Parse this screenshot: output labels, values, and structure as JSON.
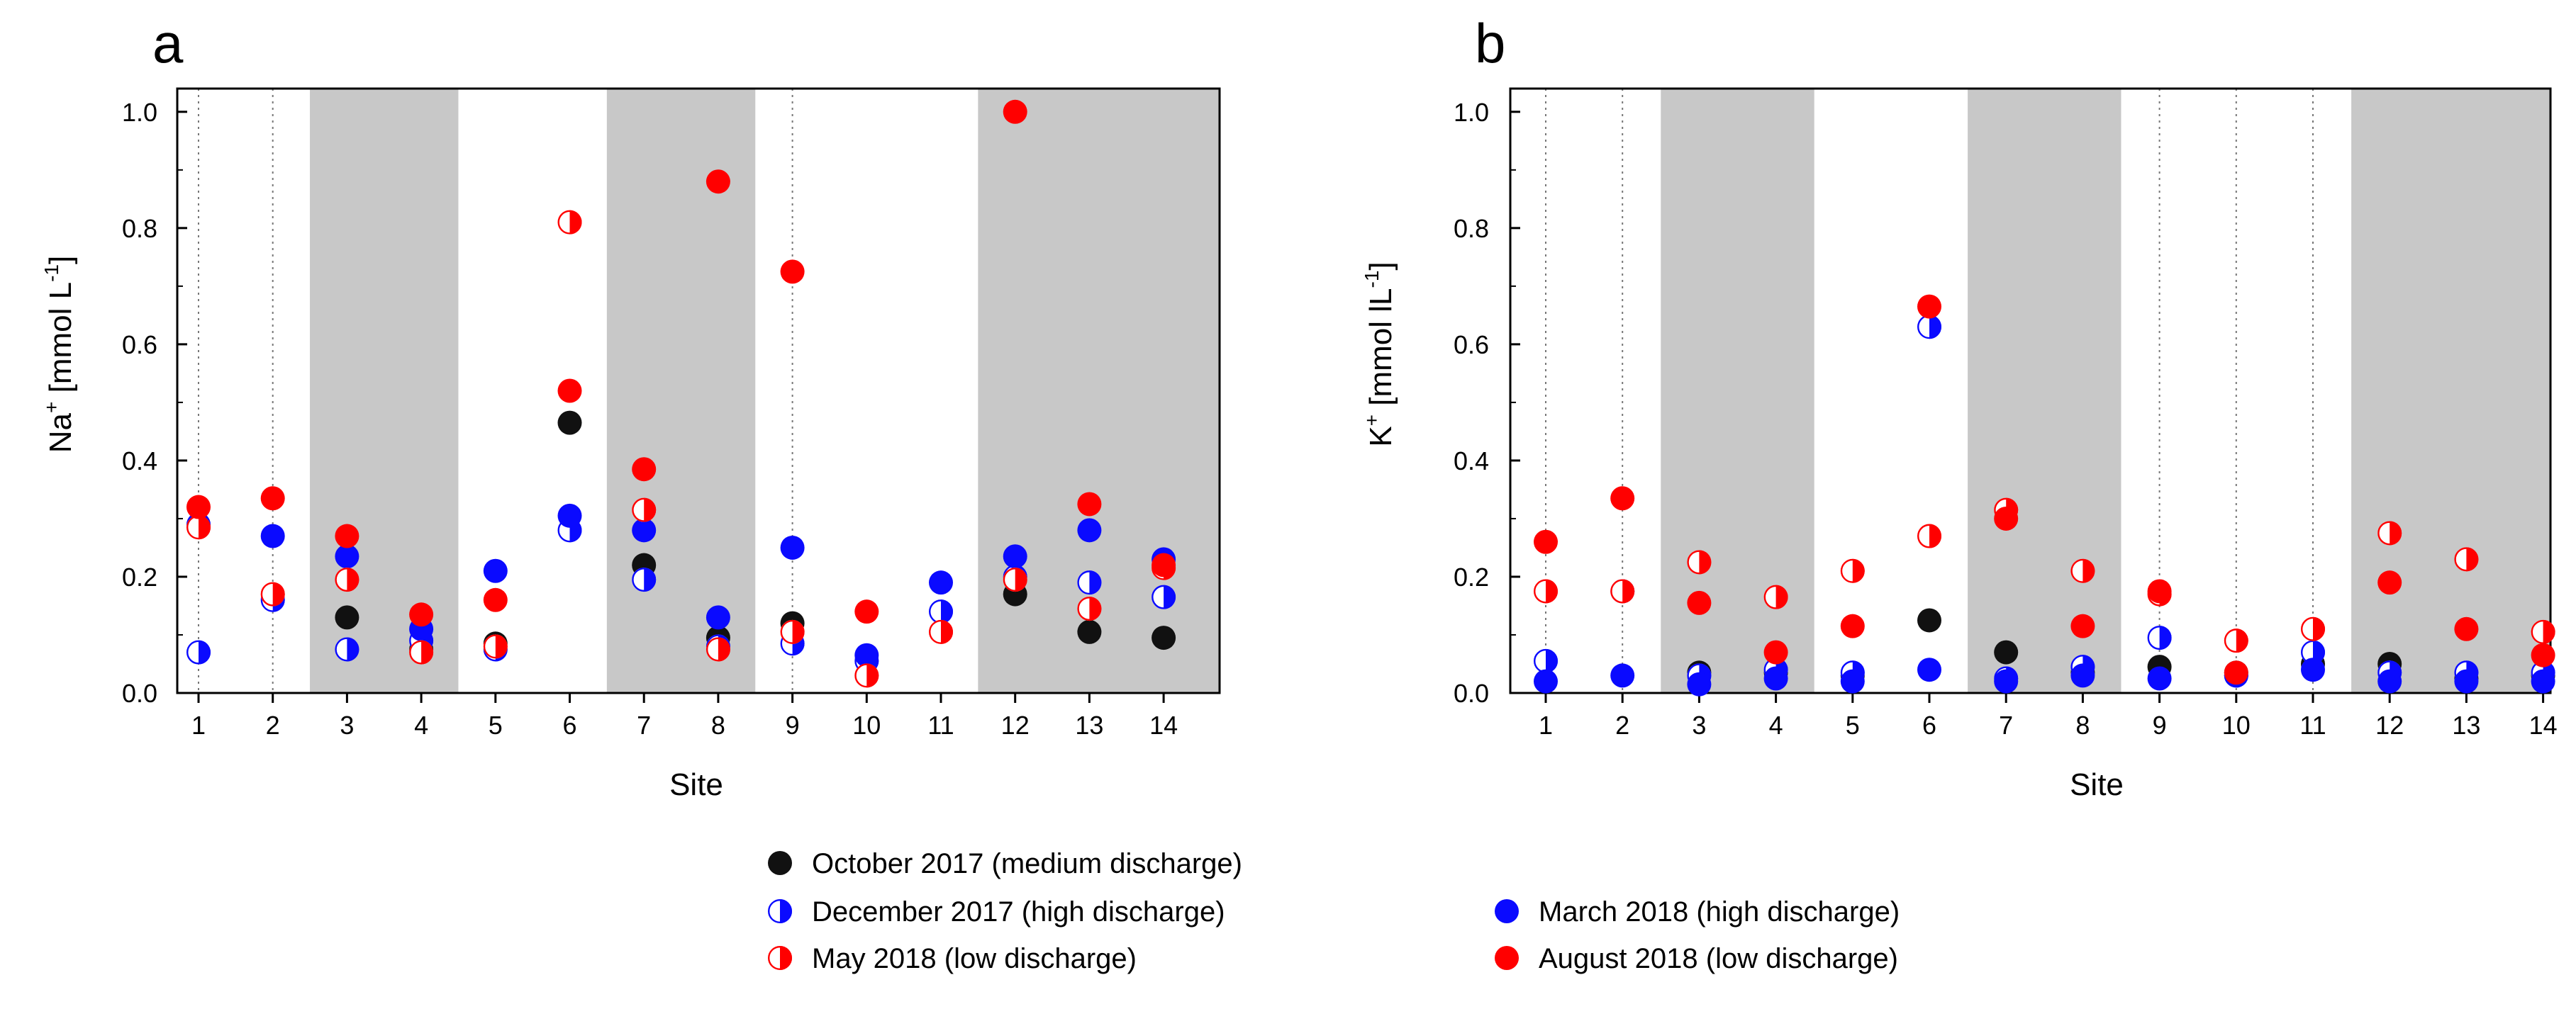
{
  "chart_data": [
    {
      "type": "scatter",
      "panel_label": "a",
      "ylabel_main": "Na",
      "ylabel_sup": "+",
      "ylabel_unit": " [mmol L",
      "ylabel_unit_sup": "-1",
      "ylabel_close": "]",
      "xlabel": "Site",
      "categories": [
        "1",
        "2",
        "3",
        "4",
        "5",
        "6",
        "7",
        "8",
        "9",
        "10",
        "11",
        "12",
        "13",
        "14"
      ],
      "ylim": [
        0,
        1.04
      ],
      "yticks": [
        "0.0",
        "0.2",
        "0.4",
        "0.6",
        "0.8",
        "1.0"
      ],
      "shaded_sites": [
        3,
        4,
        7,
        8,
        12,
        13,
        14
      ],
      "dotted_sites": [
        1,
        2,
        9
      ],
      "series": [
        {
          "name": "October 2017 (medium discharge)",
          "style": "black",
          "values": [
            null,
            null,
            0.13,
            0.075,
            0.085,
            0.465,
            0.22,
            0.095,
            0.12,
            null,
            null,
            0.17,
            0.105,
            0.095
          ]
        },
        {
          "name": "December 2017 (high discharge)",
          "style": "half-blue",
          "values": [
            0.07,
            0.16,
            0.075,
            0.09,
            0.075,
            0.28,
            0.195,
            0.08,
            0.085,
            0.055,
            0.14,
            0.2,
            0.19,
            0.165
          ]
        },
        {
          "name": "March 2018 (high discharge)",
          "style": "blue",
          "values": [
            0.29,
            0.27,
            0.235,
            0.11,
            0.21,
            0.305,
            0.28,
            0.13,
            0.25,
            0.065,
            0.19,
            0.235,
            0.28,
            0.23
          ]
        },
        {
          "name": "May 2018 (low discharge)",
          "style": "half-red",
          "values": [
            0.285,
            0.17,
            0.195,
            0.07,
            0.08,
            0.81,
            0.315,
            0.075,
            0.105,
            0.03,
            0.105,
            0.195,
            0.145,
            0.215
          ]
        },
        {
          "name": "August 2018 (low discharge)",
          "style": "red",
          "values": [
            0.32,
            0.335,
            0.27,
            0.135,
            0.16,
            0.52,
            0.385,
            0.88,
            0.725,
            0.14,
            null,
            1.0,
            0.325,
            0.22
          ]
        }
      ]
    },
    {
      "type": "scatter",
      "panel_label": "b",
      "ylabel_main": "K",
      "ylabel_sup": "+",
      "ylabel_unit": " [mmol lL",
      "ylabel_unit_sup": "-1",
      "ylabel_close": "]",
      "xlabel": "Site",
      "categories": [
        "1",
        "2",
        "3",
        "4",
        "5",
        "6",
        "7",
        "8",
        "9",
        "10",
        "11",
        "12",
        "13",
        "14"
      ],
      "ylim": [
        0,
        1.04
      ],
      "yticks": [
        "0.0",
        "0.2",
        "0.4",
        "0.6",
        "0.8",
        "1.0"
      ],
      "shaded_sites": [
        3,
        4,
        7,
        8,
        12,
        13,
        14
      ],
      "dotted_sites": [
        1,
        2,
        9,
        10,
        11
      ],
      "series": [
        {
          "name": "October 2017 (medium discharge)",
          "style": "black",
          "values": [
            null,
            null,
            0.035,
            0.035,
            0.03,
            0.125,
            0.07,
            0.035,
            0.045,
            0.035,
            0.05,
            0.05,
            0.025,
            0.03
          ]
        },
        {
          "name": "December 2017 (high discharge)",
          "style": "half-blue",
          "values": [
            0.055,
            0.175,
            0.03,
            0.04,
            0.035,
            0.63,
            0.025,
            0.045,
            0.095,
            0.03,
            0.07,
            0.035,
            0.035,
            0.035
          ]
        },
        {
          "name": "March 2018 (high discharge)",
          "style": "blue",
          "values": [
            0.02,
            0.03,
            0.015,
            0.025,
            0.02,
            0.04,
            0.02,
            0.03,
            0.025,
            0.03,
            0.04,
            0.02,
            0.02,
            0.02
          ]
        },
        {
          "name": "May 2018 (low discharge)",
          "style": "half-red",
          "values": [
            0.175,
            0.175,
            0.225,
            0.165,
            0.21,
            0.27,
            0.315,
            0.21,
            0.17,
            0.09,
            0.11,
            0.275,
            0.23,
            0.105
          ]
        },
        {
          "name": "August 2018 (low discharge)",
          "style": "red",
          "values": [
            0.26,
            0.335,
            0.155,
            0.07,
            0.115,
            0.665,
            0.3,
            0.115,
            0.175,
            0.035,
            null,
            0.19,
            0.11,
            0.065
          ]
        }
      ]
    }
  ],
  "legend": {
    "items": [
      {
        "label": "October 2017 (medium discharge)",
        "style": "black"
      },
      {
        "label": "December 2017 (high discharge)",
        "style": "half-blue"
      },
      {
        "label": "May 2018 (low discharge)",
        "style": "half-red"
      },
      {
        "label": "March 2018 (high discharge)",
        "style": "blue"
      },
      {
        "label": "August 2018 (low discharge)",
        "style": "red"
      }
    ]
  },
  "colors": {
    "black": "#111111",
    "blue": "#0a0aff",
    "red": "#ff0000",
    "shade": "#c8c8c8"
  }
}
